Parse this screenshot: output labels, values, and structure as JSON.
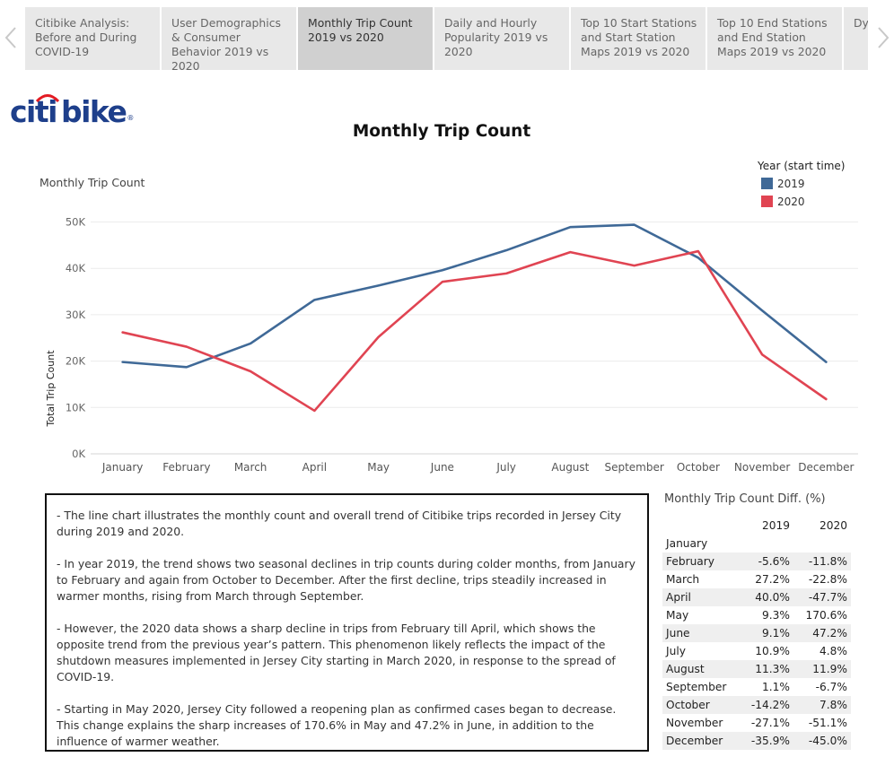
{
  "tabs": [
    {
      "label": "Citibike Analysis: Before and During COVID-19",
      "active": false
    },
    {
      "label": "User Demographics & Consumer Behavior 2019 vs 2020",
      "active": false
    },
    {
      "label": "Monthly Trip Count 2019 vs 2020",
      "active": true
    },
    {
      "label": "Daily and Hourly Popularity 2019 vs 2020",
      "active": false
    },
    {
      "label": "Top 10 Start Stations and Start Station Maps 2019 vs 2020",
      "active": false
    },
    {
      "label": "Top 10 End Stations and End Station Maps 2019 vs 2020",
      "active": false
    },
    {
      "label": "Dy Sta",
      "active": false
    }
  ],
  "logo": {
    "part1": "citi",
    "part2": "bike",
    "mark": "®"
  },
  "title": "Monthly Trip Count",
  "chart_data": {
    "type": "line",
    "title": "Monthly Trip Count",
    "subtitle": "Monthly Trip Count",
    "ylabel": "Total Trip Count",
    "xlabel": "",
    "categories": [
      "January",
      "February",
      "March",
      "April",
      "May",
      "June",
      "July",
      "August",
      "September",
      "October",
      "November",
      "December"
    ],
    "yticks": [
      0,
      10000,
      20000,
      30000,
      40000,
      50000
    ],
    "ytick_labels": [
      "0K",
      "10K",
      "20K",
      "30K",
      "40K",
      "50K"
    ],
    "ylim": [
      0,
      53000
    ],
    "grid": true,
    "legend": {
      "title": "Year (start time)",
      "position": "top-right"
    },
    "series": [
      {
        "name": "2019",
        "color": "#3f6997",
        "values": [
          19800,
          18700,
          23800,
          33200,
          36300,
          39600,
          43900,
          48900,
          49400,
          42300,
          30900,
          19800
        ]
      },
      {
        "name": "2020",
        "color": "#e04452",
        "values": [
          26200,
          23100,
          17800,
          9300,
          25200,
          37100,
          38900,
          43500,
          40600,
          43700,
          21400,
          11800
        ]
      }
    ]
  },
  "notes": [
    "- The line chart illustrates the monthly count and overall trend of Citibike trips recorded in Jersey City during 2019 and 2020.",
    "- In year 2019, the trend shows two seasonal declines in trip counts during colder months, from January to February and again from October to December. After the first decline, trips steadily increased in warmer months, rising from March through September.",
    "- However, the 2020 data shows a sharp decline in trips from February till April, which shows the opposite trend from the previous year’s pattern. This phenomenon likely reflects the impact of the shutdown measures implemented in Jersey City starting in March 2020, in response to the spread of COVID-19.",
    "- Starting in May 2020, Jersey City followed a reopening plan as confirmed cases began to decrease. This change explains the sharp increases of 170.6% in May and 47.2% in June, in addition to the influence of warmer weather."
  ],
  "diff_table": {
    "title": "Monthly Trip Count Diff. (%)",
    "headers": [
      "2019",
      "2020"
    ],
    "rows": [
      {
        "month": "January",
        "y2019": "",
        "y2020": ""
      },
      {
        "month": "February",
        "y2019": "-5.6%",
        "y2020": "-11.8%"
      },
      {
        "month": "March",
        "y2019": "27.2%",
        "y2020": "-22.8%"
      },
      {
        "month": "April",
        "y2019": "40.0%",
        "y2020": "-47.7%"
      },
      {
        "month": "May",
        "y2019": "9.3%",
        "y2020": "170.6%"
      },
      {
        "month": "June",
        "y2019": "9.1%",
        "y2020": "47.2%"
      },
      {
        "month": "July",
        "y2019": "10.9%",
        "y2020": "4.8%"
      },
      {
        "month": "August",
        "y2019": "11.3%",
        "y2020": "11.9%"
      },
      {
        "month": "September",
        "y2019": "1.1%",
        "y2020": "-6.7%"
      },
      {
        "month": "October",
        "y2019": "-14.2%",
        "y2020": "7.8%"
      },
      {
        "month": "November",
        "y2019": "-27.1%",
        "y2020": "-51.1%"
      },
      {
        "month": "December",
        "y2019": "-35.9%",
        "y2020": "-45.0%"
      }
    ]
  }
}
